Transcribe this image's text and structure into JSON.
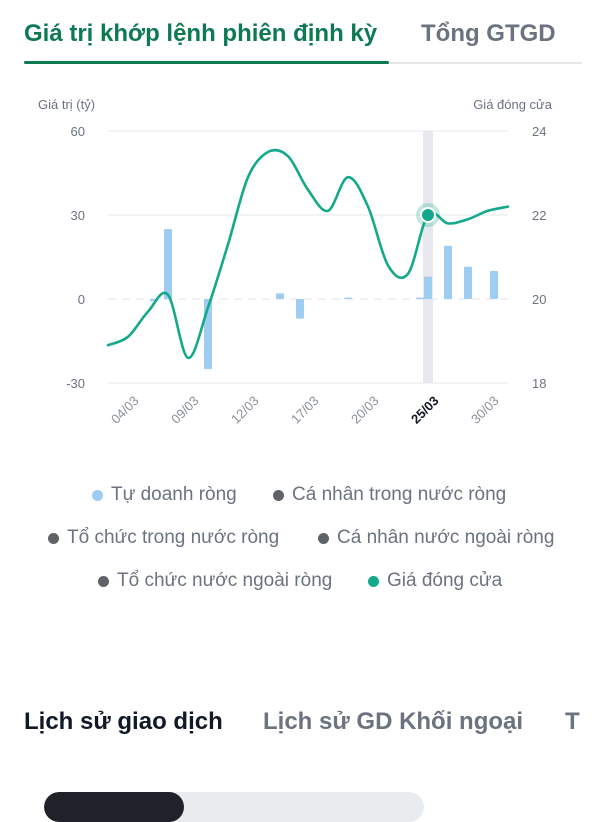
{
  "tabs_top": {
    "active": "Giá trị khớp lệnh phiên định kỳ",
    "inactive": "Tổng GTGD"
  },
  "chart_data": {
    "type": "bar+line",
    "left_axis_label": "Giá trị (tỷ)",
    "right_axis_label": "Giá đóng cửa",
    "left_ticks": [
      "60",
      "30",
      "0",
      "-30"
    ],
    "right_ticks": [
      "24",
      "22",
      "20",
      "18"
    ],
    "ylim_left": [
      -30,
      60
    ],
    "ylim_right": [
      18,
      24
    ],
    "x_tick_labels": [
      "04/03",
      "09/03",
      "12/03",
      "17/03",
      "20/03",
      "25/03",
      "30/03"
    ],
    "highlighted_x_label": "25/03",
    "x_index_range": [
      0,
      20
    ],
    "x_tick_index": [
      1,
      4,
      7,
      10,
      13,
      16,
      19
    ],
    "highlight_index": 16,
    "bar_series": {
      "name": "Tự doanh ròng",
      "color": "#9fcdf2",
      "points": [
        {
          "i": 2.3,
          "v": -0.8
        },
        {
          "i": 3,
          "v": 25
        },
        {
          "i": 5,
          "v": -25
        },
        {
          "i": 8.6,
          "v": 2
        },
        {
          "i": 9.6,
          "v": -7
        },
        {
          "i": 12,
          "v": 0.5
        },
        {
          "i": 15.6,
          "v": 0.5
        },
        {
          "i": 16,
          "v": 8
        },
        {
          "i": 17,
          "v": 19
        },
        {
          "i": 18,
          "v": 11.5
        },
        {
          "i": 19.3,
          "v": 10
        }
      ]
    },
    "line_series": {
      "name": "Giá đóng cửa",
      "color": "#13a98a",
      "points": [
        {
          "i": 0,
          "v": 18.9
        },
        {
          "i": 1,
          "v": 19.1
        },
        {
          "i": 2,
          "v": 19.7
        },
        {
          "i": 3,
          "v": 20.1
        },
        {
          "i": 4,
          "v": 18.6
        },
        {
          "i": 5,
          "v": 19.8
        },
        {
          "i": 6,
          "v": 21.3
        },
        {
          "i": 7,
          "v": 22.9
        },
        {
          "i": 8,
          "v": 23.5
        },
        {
          "i": 9,
          "v": 23.4
        },
        {
          "i": 10,
          "v": 22.6
        },
        {
          "i": 11,
          "v": 22.1
        },
        {
          "i": 12,
          "v": 22.9
        },
        {
          "i": 13,
          "v": 22.2
        },
        {
          "i": 14,
          "v": 20.8
        },
        {
          "i": 15,
          "v": 20.6
        },
        {
          "i": 16,
          "v": 22.0
        },
        {
          "i": 17,
          "v": 21.8
        },
        {
          "i": 18,
          "v": 21.9
        },
        {
          "i": 19,
          "v": 22.1
        },
        {
          "i": 20,
          "v": 22.2
        }
      ]
    },
    "legend": [
      {
        "label": "Tự doanh ròng",
        "color": "#9fcdf2"
      },
      {
        "label": "Cá nhân trong nước ròng",
        "color": "#5f6368"
      },
      {
        "label": "Tổ chức trong nước ròng",
        "color": "#5f6368"
      },
      {
        "label": "Cá nhân nước ngoài ròng",
        "color": "#5f6368"
      },
      {
        "label": "Tổ chức nước ngoài ròng",
        "color": "#5f6368"
      },
      {
        "label": "Giá đóng cửa",
        "color": "#13a98a"
      }
    ]
  },
  "bottom_tabs": {
    "active": "Lịch sử giao dịch",
    "inactive": "Lịch sử GD Khối ngoại",
    "cut": "T"
  },
  "colors": {
    "accent": "#0e7a52",
    "line": "#13a98a",
    "bar": "#9fcdf2",
    "grid": "#e5e7eb"
  }
}
